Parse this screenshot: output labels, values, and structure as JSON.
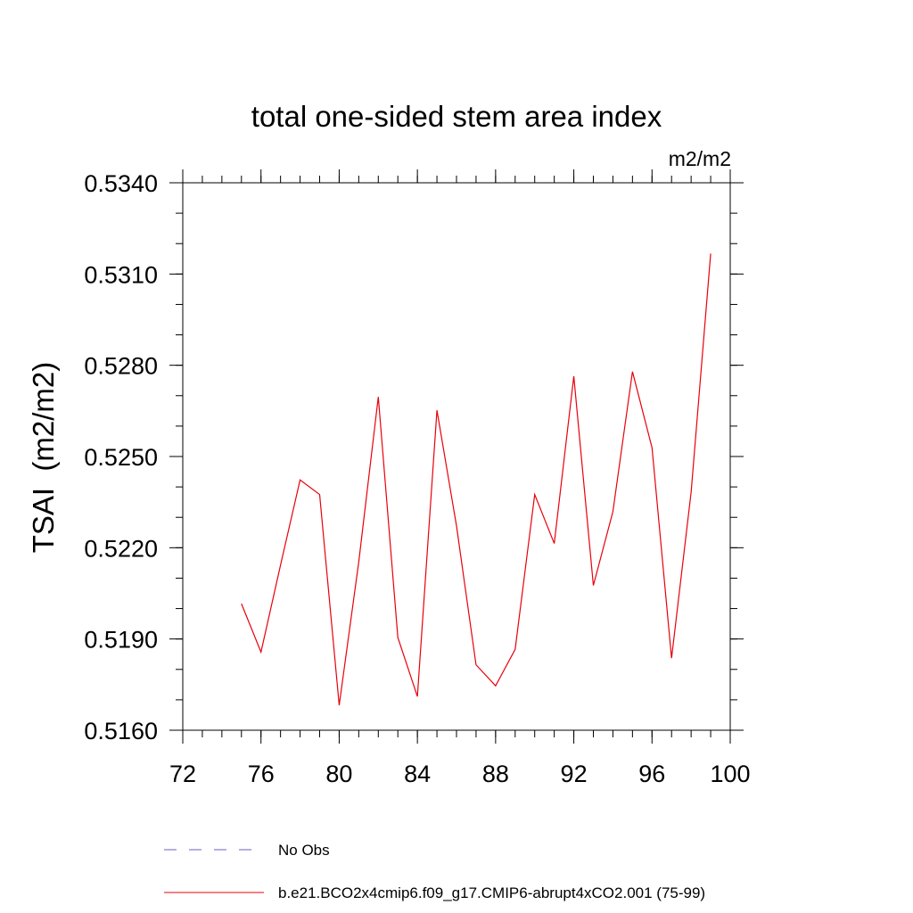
{
  "chart_data": {
    "type": "line",
    "title": "total one-sided stem area index",
    "units_label": "m2/m2",
    "ylabel": "TSAI  (m2/m2)",
    "xlabel": "",
    "xlim": [
      72,
      100
    ],
    "ylim": [
      0.516,
      0.534
    ],
    "x_ticks": [
      72,
      76,
      80,
      84,
      88,
      92,
      96,
      100
    ],
    "y_ticks": [
      "0.5160",
      "0.5190",
      "0.5220",
      "0.5250",
      "0.5280",
      "0.5310",
      "0.5340"
    ],
    "x_minor_step": 1,
    "y_minor_step": 0.001,
    "series": [
      {
        "name": "b.e21.BCO2x4cmip6.f09_g17.CMIP6-abrupt4xCO2.001 (75-99)",
        "color": "#e8000b",
        "style": "solid",
        "x": [
          75,
          76,
          77,
          78,
          79,
          80,
          81,
          82,
          83,
          84,
          85,
          86,
          87,
          88,
          89,
          90,
          91,
          92,
          93,
          94,
          95,
          96,
          97,
          98,
          99
        ],
        "y": [
          0.52016,
          0.51857,
          0.52143,
          0.52423,
          0.52375,
          0.51682,
          0.52153,
          0.52696,
          0.51905,
          0.51711,
          0.52652,
          0.52272,
          0.51815,
          0.51746,
          0.51866,
          0.52375,
          0.52214,
          0.52764,
          0.52076,
          0.52319,
          0.52779,
          0.52529,
          0.51837,
          0.52382,
          0.53167
        ]
      }
    ],
    "legend": {
      "placement": "bottom",
      "entries": [
        {
          "label": "No Obs",
          "color": "#6b5fbf",
          "style": "dashed"
        },
        {
          "label": "b.e21.BCO2x4cmip6.f09_g17.CMIP6-abrupt4xCO2.001 (75-99)",
          "color": "#e8000b",
          "style": "solid"
        }
      ]
    }
  }
}
